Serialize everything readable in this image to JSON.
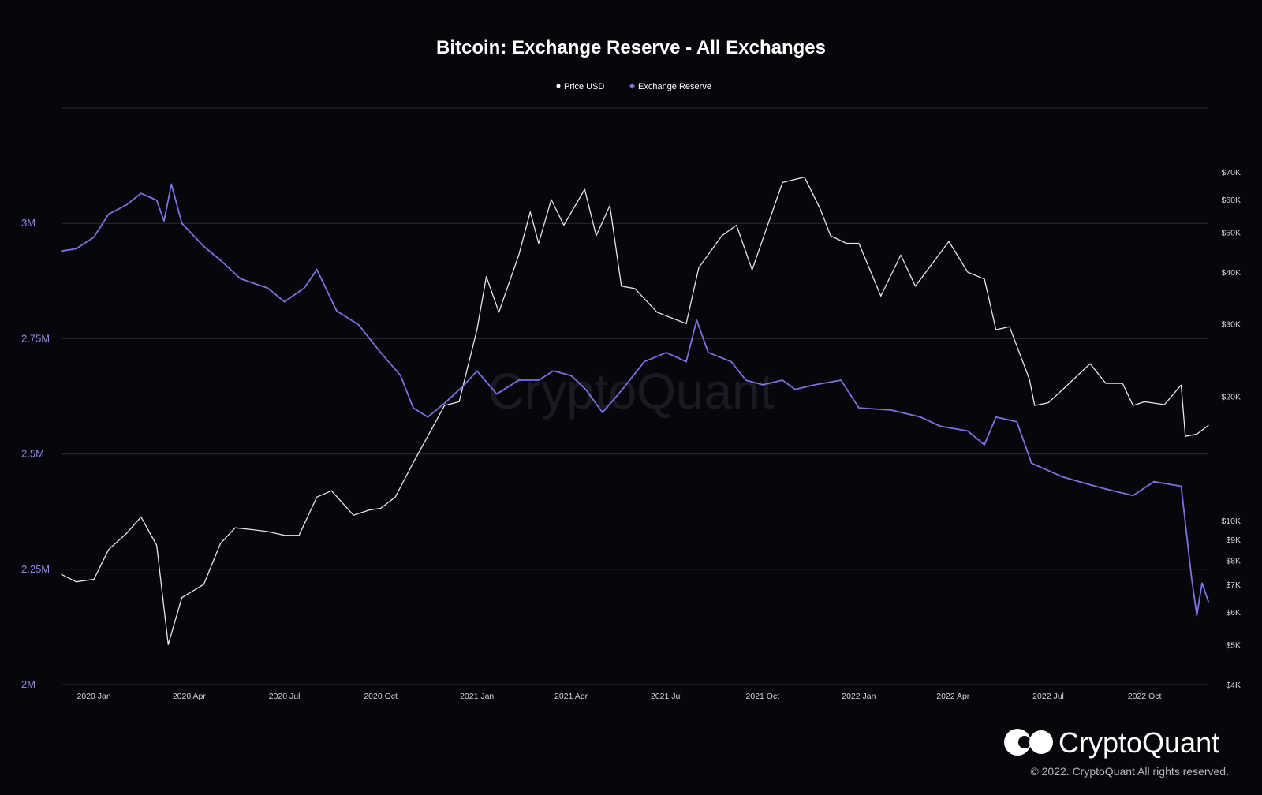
{
  "brand": {
    "name": "CryptoQuant",
    "watermark": "CryptoQuant",
    "copyright": "© 2022. CryptoQuant All rights reserved."
  },
  "colors": {
    "background": "#07070b",
    "grid": "#2a2a30",
    "price": "#e6e6ea",
    "reserve": "#7b72e3",
    "left_axis_text": "#8c84f0",
    "right_axis_text": "#d0d0d8"
  },
  "chart_data": {
    "type": "line",
    "title": "Bitcoin: Exchange Reserve - All Exchanges",
    "legend_position": "top-center",
    "grid": true,
    "x_range": [
      "2019-12-01",
      "2022-12-01"
    ],
    "x_ticks": [
      {
        "date": "2020-01-01",
        "label": "2020 Jan"
      },
      {
        "date": "2020-04-01",
        "label": "2020 Apr"
      },
      {
        "date": "2020-07-01",
        "label": "2020 Jul"
      },
      {
        "date": "2020-10-01",
        "label": "2020 Oct"
      },
      {
        "date": "2021-01-01",
        "label": "2021 Jan"
      },
      {
        "date": "2021-04-01",
        "label": "2021 Apr"
      },
      {
        "date": "2021-07-01",
        "label": "2021 Jul"
      },
      {
        "date": "2021-10-01",
        "label": "2021 Oct"
      },
      {
        "date": "2022-01-01",
        "label": "2022 Jan"
      },
      {
        "date": "2022-04-01",
        "label": "2022 Apr"
      },
      {
        "date": "2022-07-01",
        "label": "2022 Jul"
      },
      {
        "date": "2022-10-01",
        "label": "2022 Oct"
      }
    ],
    "y_left": {
      "series": "Exchange Reserve",
      "range": [
        2000000,
        3250000
      ],
      "ticks": [
        {
          "value": 2000000,
          "label": "2M"
        },
        {
          "value": 2250000,
          "label": "2.25M"
        },
        {
          "value": 2500000,
          "label": "2.5M"
        },
        {
          "value": 2750000,
          "label": "2.75M"
        },
        {
          "value": 3000000,
          "label": "3M"
        }
      ]
    },
    "y_right": {
      "series": "Price USD",
      "scale": "log",
      "range": [
        4000,
        100000
      ],
      "ticks": [
        {
          "value": 4000,
          "label": "$4K"
        },
        {
          "value": 5000,
          "label": "$5K"
        },
        {
          "value": 6000,
          "label": "$6K"
        },
        {
          "value": 7000,
          "label": "$7K"
        },
        {
          "value": 8000,
          "label": "$8K"
        },
        {
          "value": 9000,
          "label": "$9K"
        },
        {
          "value": 10000,
          "label": "$10K"
        },
        {
          "value": 20000,
          "label": "$20K"
        },
        {
          "value": 30000,
          "label": "$30K"
        },
        {
          "value": 40000,
          "label": "$40K"
        },
        {
          "value": 50000,
          "label": "$50K"
        },
        {
          "value": 60000,
          "label": "$60K"
        },
        {
          "value": 70000,
          "label": "$70K"
        }
      ]
    },
    "series": [
      {
        "name": "Price USD",
        "axis": "right",
        "points": [
          [
            "2019-12-01",
            7400
          ],
          [
            "2019-12-15",
            7100
          ],
          [
            "2020-01-01",
            7200
          ],
          [
            "2020-01-15",
            8500
          ],
          [
            "2020-02-01",
            9300
          ],
          [
            "2020-02-15",
            10200
          ],
          [
            "2020-03-01",
            8700
          ],
          [
            "2020-03-12",
            5000
          ],
          [
            "2020-03-25",
            6500
          ],
          [
            "2020-04-15",
            7000
          ],
          [
            "2020-05-01",
            8800
          ],
          [
            "2020-05-15",
            9600
          ],
          [
            "2020-06-01",
            9500
          ],
          [
            "2020-06-15",
            9400
          ],
          [
            "2020-07-01",
            9200
          ],
          [
            "2020-07-15",
            9200
          ],
          [
            "2020-08-01",
            11400
          ],
          [
            "2020-08-15",
            11800
          ],
          [
            "2020-09-05",
            10300
          ],
          [
            "2020-09-20",
            10600
          ],
          [
            "2020-10-01",
            10700
          ],
          [
            "2020-10-15",
            11400
          ],
          [
            "2020-11-01",
            13800
          ],
          [
            "2020-11-15",
            16000
          ],
          [
            "2020-12-01",
            19000
          ],
          [
            "2020-12-15",
            19400
          ],
          [
            "2021-01-01",
            29000
          ],
          [
            "2021-01-10",
            39000
          ],
          [
            "2021-01-22",
            32000
          ],
          [
            "2021-02-10",
            44000
          ],
          [
            "2021-02-21",
            56000
          ],
          [
            "2021-03-01",
            47000
          ],
          [
            "2021-03-13",
            60000
          ],
          [
            "2021-03-25",
            52000
          ],
          [
            "2021-04-14",
            63500
          ],
          [
            "2021-04-25",
            49000
          ],
          [
            "2021-05-08",
            58000
          ],
          [
            "2021-05-19",
            37000
          ],
          [
            "2021-06-01",
            36500
          ],
          [
            "2021-06-22",
            32000
          ],
          [
            "2021-07-20",
            30000
          ],
          [
            "2021-08-01",
            41000
          ],
          [
            "2021-08-23",
            49000
          ],
          [
            "2021-09-06",
            52000
          ],
          [
            "2021-09-21",
            40500
          ],
          [
            "2021-10-01",
            48000
          ],
          [
            "2021-10-20",
            66000
          ],
          [
            "2021-11-10",
            68000
          ],
          [
            "2021-11-25",
            57000
          ],
          [
            "2021-12-05",
            49000
          ],
          [
            "2021-12-20",
            47000
          ],
          [
            "2022-01-01",
            47000
          ],
          [
            "2022-01-22",
            35000
          ],
          [
            "2022-02-10",
            44000
          ],
          [
            "2022-02-24",
            37000
          ],
          [
            "2022-03-28",
            47500
          ],
          [
            "2022-04-15",
            40000
          ],
          [
            "2022-05-01",
            38500
          ],
          [
            "2022-05-12",
            29000
          ],
          [
            "2022-05-25",
            29500
          ],
          [
            "2022-06-13",
            22000
          ],
          [
            "2022-06-18",
            19000
          ],
          [
            "2022-07-01",
            19300
          ],
          [
            "2022-07-15",
            20800
          ],
          [
            "2022-08-10",
            24000
          ],
          [
            "2022-08-25",
            21500
          ],
          [
            "2022-09-10",
            21500
          ],
          [
            "2022-09-20",
            19000
          ],
          [
            "2022-10-01",
            19400
          ],
          [
            "2022-10-20",
            19100
          ],
          [
            "2022-11-05",
            21300
          ],
          [
            "2022-11-09",
            16000
          ],
          [
            "2022-11-20",
            16200
          ],
          [
            "2022-12-01",
            17000
          ]
        ]
      },
      {
        "name": "Exchange Reserve",
        "axis": "left",
        "points": [
          [
            "2019-12-01",
            2940000
          ],
          [
            "2019-12-15",
            2945000
          ],
          [
            "2020-01-01",
            2970000
          ],
          [
            "2020-01-15",
            3020000
          ],
          [
            "2020-02-01",
            3040000
          ],
          [
            "2020-02-15",
            3065000
          ],
          [
            "2020-03-01",
            3050000
          ],
          [
            "2020-03-08",
            3005000
          ],
          [
            "2020-03-15",
            3085000
          ],
          [
            "2020-03-25",
            3000000
          ],
          [
            "2020-04-15",
            2950000
          ],
          [
            "2020-05-01",
            2920000
          ],
          [
            "2020-05-20",
            2880000
          ],
          [
            "2020-06-15",
            2860000
          ],
          [
            "2020-07-01",
            2830000
          ],
          [
            "2020-07-20",
            2860000
          ],
          [
            "2020-08-01",
            2900000
          ],
          [
            "2020-08-20",
            2810000
          ],
          [
            "2020-09-10",
            2780000
          ],
          [
            "2020-10-01",
            2720000
          ],
          [
            "2020-10-20",
            2670000
          ],
          [
            "2020-11-01",
            2600000
          ],
          [
            "2020-11-15",
            2580000
          ],
          [
            "2020-12-01",
            2610000
          ],
          [
            "2020-12-20",
            2650000
          ],
          [
            "2021-01-01",
            2680000
          ],
          [
            "2021-01-20",
            2630000
          ],
          [
            "2021-02-10",
            2660000
          ],
          [
            "2021-03-01",
            2660000
          ],
          [
            "2021-03-15",
            2680000
          ],
          [
            "2021-04-01",
            2670000
          ],
          [
            "2021-04-15",
            2640000
          ],
          [
            "2021-05-01",
            2590000
          ],
          [
            "2021-05-20",
            2640000
          ],
          [
            "2021-06-10",
            2700000
          ],
          [
            "2021-07-01",
            2720000
          ],
          [
            "2021-07-20",
            2700000
          ],
          [
            "2021-07-30",
            2790000
          ],
          [
            "2021-08-10",
            2720000
          ],
          [
            "2021-09-01",
            2700000
          ],
          [
            "2021-09-15",
            2660000
          ],
          [
            "2021-10-01",
            2650000
          ],
          [
            "2021-10-20",
            2660000
          ],
          [
            "2021-11-01",
            2640000
          ],
          [
            "2021-11-20",
            2650000
          ],
          [
            "2021-12-15",
            2660000
          ],
          [
            "2022-01-01",
            2600000
          ],
          [
            "2022-02-01",
            2595000
          ],
          [
            "2022-03-01",
            2580000
          ],
          [
            "2022-03-20",
            2560000
          ],
          [
            "2022-04-15",
            2550000
          ],
          [
            "2022-05-01",
            2520000
          ],
          [
            "2022-05-12",
            2580000
          ],
          [
            "2022-06-01",
            2570000
          ],
          [
            "2022-06-15",
            2480000
          ],
          [
            "2022-07-15",
            2450000
          ],
          [
            "2022-08-15",
            2430000
          ],
          [
            "2022-09-01",
            2420000
          ],
          [
            "2022-09-20",
            2410000
          ],
          [
            "2022-10-10",
            2440000
          ],
          [
            "2022-11-05",
            2430000
          ],
          [
            "2022-11-15",
            2230000
          ],
          [
            "2022-11-20",
            2150000
          ],
          [
            "2022-11-25",
            2220000
          ],
          [
            "2022-12-01",
            2180000
          ]
        ]
      }
    ]
  }
}
